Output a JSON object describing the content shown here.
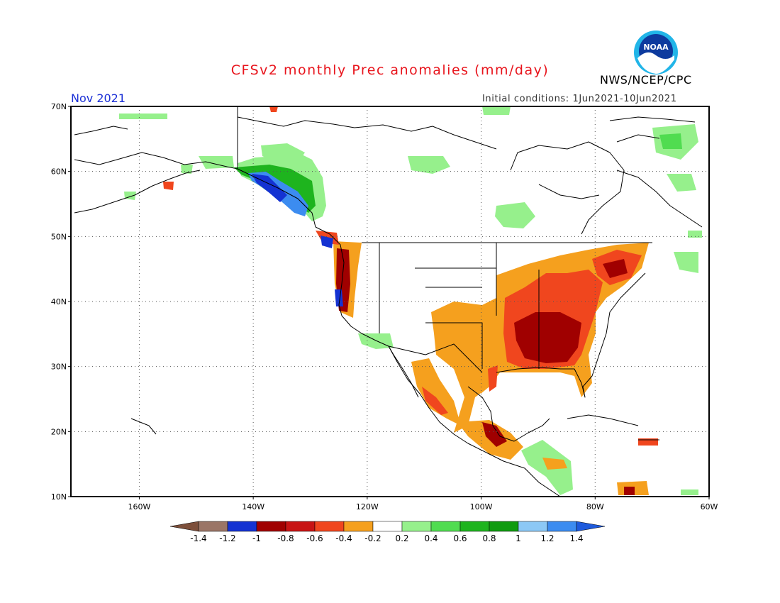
{
  "header": {
    "title": "CFSv2 monthly Prec anomalies (mm/day)",
    "organization": "NWS/NCEP/CPC",
    "logo_text": "NOAA",
    "valid_month": "Nov 2021",
    "initial_conditions": "Initial conditions: 1Jun2021-10Jun2021"
  },
  "map": {
    "lon_range": [
      -172,
      -60
    ],
    "lat_range": [
      10,
      70
    ],
    "lat_labels": [
      "70N",
      "60N",
      "50N",
      "40N",
      "30N",
      "20N",
      "10N"
    ],
    "lon_labels": [
      "160W",
      "140W",
      "120W",
      "100W",
      "80W",
      "60W"
    ],
    "gridlines": "dotted"
  },
  "colorbar": {
    "tick_labels": [
      "-1.4",
      "-1.2",
      "-1",
      "-0.8",
      "-0.6",
      "-0.4",
      "-0.2",
      "0.2",
      "0.4",
      "0.6",
      "0.8",
      "1",
      "1.2",
      "1.4"
    ],
    "colors": [
      "#7d4f3b",
      "#9a7566",
      "#1432d2",
      "#a00000",
      "#c81414",
      "#f0461e",
      "#f5a01e",
      "#ffffff",
      "#96f08c",
      "#50dc50",
      "#1eb41e",
      "#0f9b0f",
      "#8cc8f5",
      "#3c8cf0",
      "#1e5adc"
    ]
  }
}
